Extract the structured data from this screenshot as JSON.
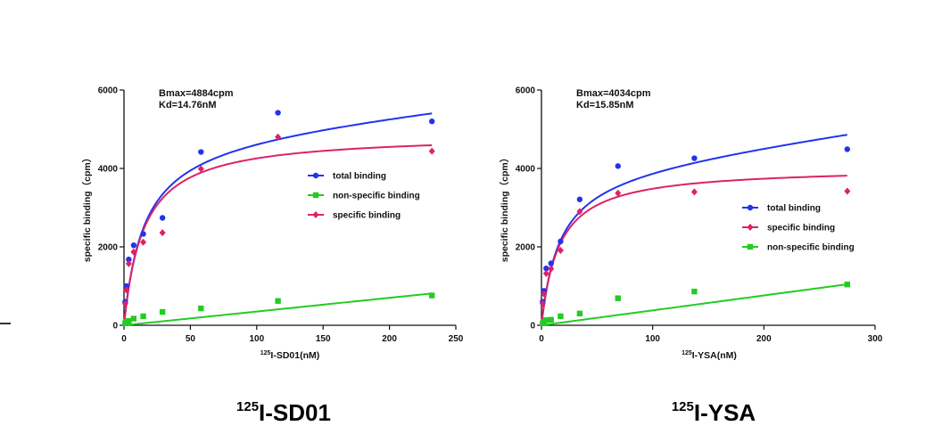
{
  "chart_data": [
    {
      "type": "scatter",
      "title": "125I-SD01",
      "title_sup": "125",
      "title_main": "I-SD01",
      "xlabel": "125I-SD01(nM)",
      "xlabel_sup": "125",
      "xlabel_main": "I-SD01(nM)",
      "ylabel": "specific binding（cpm）",
      "xlim": [
        0,
        250
      ],
      "ylim": [
        0,
        6000
      ],
      "xticks": [
        0,
        50,
        100,
        150,
        200,
        250
      ],
      "yticks": [
        0,
        2000,
        4000,
        6000
      ],
      "xtick_labels": [
        "0",
        "50",
        "100",
        "150",
        "200",
        "250"
      ],
      "ytick_labels": [
        "0",
        "2000",
        "4000",
        "6000"
      ],
      "grid": false,
      "legend_position": "center-right",
      "annotations": [
        "Bmax=4884cpm",
        "Kd=14.76nM"
      ],
      "series": [
        {
          "name": "total binding",
          "color": "#2233ee",
          "marker": "circle",
          "x": [
            0.9,
            1.8,
            3.6,
            7.3,
            14.5,
            29,
            58,
            116,
            232
          ],
          "y": [
            600,
            1000,
            1680,
            2040,
            2330,
            2740,
            4420,
            5420,
            5200
          ],
          "curve": {
            "model": "one-site-plus-linear",
            "bmax": 4884,
            "kd": 14.76,
            "ns": 3.5
          }
        },
        {
          "name": "non-specific binding",
          "color": "#22cc22",
          "marker": "square",
          "x": [
            0.9,
            1.8,
            3.6,
            7.3,
            14.5,
            29,
            58,
            116,
            232
          ],
          "y": [
            50,
            80,
            110,
            170,
            230,
            340,
            430,
            620,
            760
          ],
          "curve": {
            "model": "linear",
            "slope": 3.5
          }
        },
        {
          "name": "specific binding",
          "color": "#dd2266",
          "marker": "diamond",
          "x": [
            0.9,
            1.8,
            3.6,
            7.3,
            14.5,
            29,
            58,
            116,
            232
          ],
          "y": [
            550,
            900,
            1570,
            1870,
            2120,
            2360,
            3990,
            4800,
            4440
          ],
          "curve": {
            "model": "one-site",
            "bmax": 4884,
            "kd": 14.76
          }
        }
      ]
    },
    {
      "type": "scatter",
      "title": "125I-YSA",
      "title_sup": "125",
      "title_main": "I-YSA",
      "xlabel": "125I-YSA(nM)",
      "xlabel_sup": "125",
      "xlabel_main": "I-YSA(nM)",
      "ylabel": "specific binding（cpm）",
      "xlim": [
        0,
        300
      ],
      "ylim": [
        0,
        6000
      ],
      "xticks": [
        0,
        100,
        200,
        300
      ],
      "yticks": [
        0,
        2000,
        4000,
        6000
      ],
      "xtick_labels": [
        "0",
        "100",
        "200",
        "300"
      ],
      "ytick_labels": [
        "0",
        "2000",
        "4000",
        "6000"
      ],
      "grid": false,
      "legend_position": "center-right",
      "annotations": [
        "Bmax=4034cpm",
        "Kd=15.85nM"
      ],
      "series": [
        {
          "name": "total binding",
          "color": "#2233ee",
          "marker": "circle",
          "x": [
            1.1,
            2.2,
            4.3,
            8.6,
            17.2,
            34.4,
            68.8,
            137.5,
            275
          ],
          "y": [
            600,
            880,
            1450,
            1580,
            2140,
            3210,
            4060,
            4260,
            4490
          ],
          "curve": {
            "model": "one-site-plus-linear",
            "bmax": 4034,
            "kd": 15.85,
            "ns": 3.8
          }
        },
        {
          "name": "specific binding",
          "color": "#dd2266",
          "marker": "diamond",
          "x": [
            1.1,
            2.2,
            4.3,
            8.6,
            17.2,
            34.4,
            68.8,
            137.5,
            275
          ],
          "y": [
            550,
            800,
            1320,
            1440,
            1910,
            2900,
            3370,
            3400,
            3420
          ],
          "curve": {
            "model": "one-site",
            "bmax": 4034,
            "kd": 15.85
          }
        },
        {
          "name": "non-specific binding",
          "color": "#22cc22",
          "marker": "square",
          "x": [
            1.1,
            2.2,
            4.3,
            8.6,
            17.2,
            34.4,
            68.8,
            137.5,
            275
          ],
          "y": [
            50,
            80,
            130,
            140,
            230,
            300,
            690,
            860,
            1040
          ],
          "curve": {
            "model": "linear",
            "slope": 3.8
          }
        }
      ]
    }
  ]
}
